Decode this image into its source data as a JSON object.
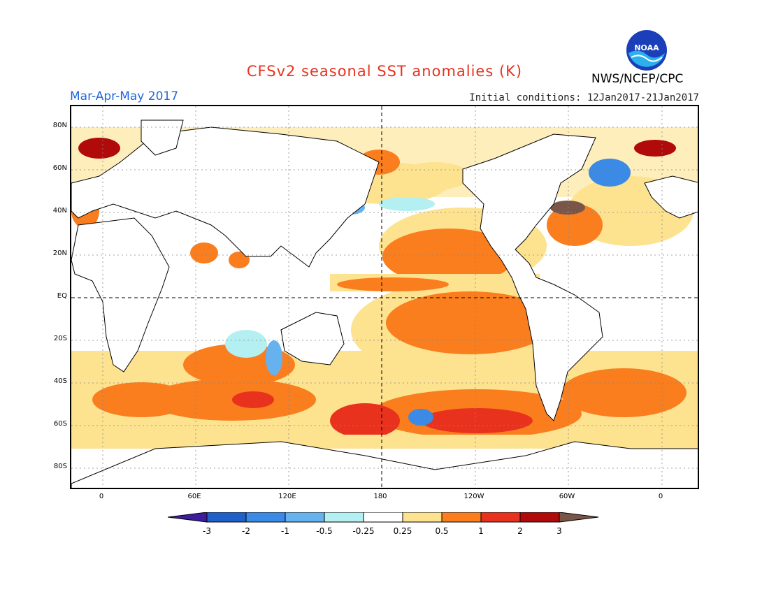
{
  "header": {
    "title": "CFSv2 seasonal SST anomalies (K)",
    "season": "Mar-Apr-May 2017",
    "initial_conditions": "Initial conditions: 12Jan2017-21Jan2017",
    "agency": "NWS/NCEP/CPC",
    "logo_text": "NOAA"
  },
  "map": {
    "projection": "cylindrical equidistant",
    "lat_labels": [
      "80N",
      "60N",
      "40N",
      "20N",
      "EQ",
      "20S",
      "40S",
      "60S",
      "80S"
    ],
    "lon_labels": [
      "0",
      "60E",
      "120E",
      "180",
      "120W",
      "60W",
      "0"
    ],
    "reference_lines": [
      "EQ",
      "180"
    ]
  },
  "colorbar": {
    "labels": [
      "-3",
      "-2",
      "-1",
      "-0.5",
      "-0.25",
      "0.25",
      "0.5",
      "1",
      "2",
      "3"
    ],
    "colors": [
      "#3c1d9e",
      "#1f5fc8",
      "#3a8ae6",
      "#66b2ef",
      "#b4f0f2",
      "#ffffff",
      "#fde28f",
      "#fa7d1e",
      "#e8321e",
      "#b00a0a",
      "#7a5648"
    ]
  }
}
